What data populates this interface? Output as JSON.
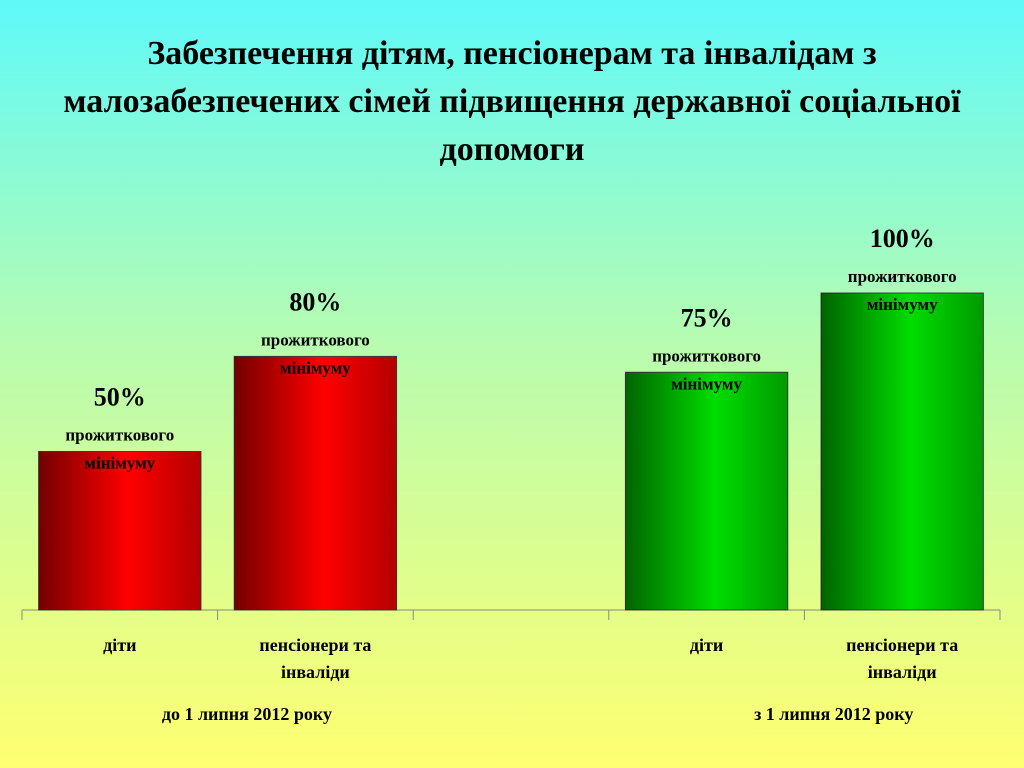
{
  "chart_data": {
    "type": "bar",
    "title": "Забезпечення дітям, пенсіонерам та інвалідам з малозабезпечених сімей підвищення державної соціальної допомоги",
    "categories": [
      "діти",
      "пенсіонери та інваліди",
      null,
      "діти",
      "пенсіонери та інваліди"
    ],
    "values": [
      50,
      80,
      null,
      75,
      100
    ],
    "value_labels": [
      "50%",
      "80%",
      null,
      "75%",
      "100%"
    ],
    "value_label_note": [
      "прожиткового",
      "мінімуму"
    ],
    "colors": [
      "#ff0000",
      "#ff0000",
      null,
      "#00dd00",
      "#00dd00"
    ],
    "groups": [
      "до 1 липня 2012 року",
      "з 1 липня 2012 року"
    ],
    "ylim": [
      0,
      100
    ]
  }
}
